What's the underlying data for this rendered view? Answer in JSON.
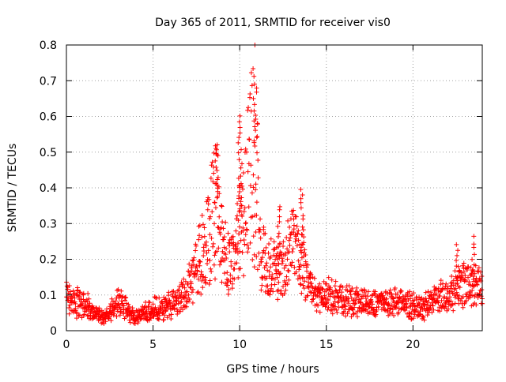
{
  "chart_data": {
    "type": "scatter",
    "title": "Day 365 of 2011, SRMTID for receiver vis0",
    "xlabel": "GPS time / hours",
    "ylabel": "SRMTID / TECUs",
    "xlim": [
      0,
      24
    ],
    "ylim": [
      0,
      0.8
    ],
    "xticks": [
      0,
      5,
      10,
      15,
      20
    ],
    "xtick_labels": [
      "0",
      "5",
      "10",
      "15",
      "20"
    ],
    "yticks": [
      0,
      0.1,
      0.2,
      0.3,
      0.4,
      0.5,
      0.6,
      0.7,
      0.8
    ],
    "ytick_labels": [
      "0",
      "0.1",
      "0.2",
      "0.3",
      "0.4",
      "0.5",
      "0.6",
      "0.7",
      "0.8"
    ],
    "grid": true,
    "marker": "+",
    "marker_color": "#ff0000",
    "series": [
      {
        "name": "SRMTID",
        "envelope": [
          [
            0.0,
            0.09
          ],
          [
            0.5,
            0.08
          ],
          [
            1.0,
            0.07
          ],
          [
            1.5,
            0.06
          ],
          [
            2.0,
            0.04
          ],
          [
            2.5,
            0.05
          ],
          [
            3.0,
            0.08
          ],
          [
            3.5,
            0.06
          ],
          [
            4.0,
            0.04
          ],
          [
            4.5,
            0.05
          ],
          [
            5.0,
            0.06
          ],
          [
            5.5,
            0.07
          ],
          [
            6.0,
            0.07
          ],
          [
            6.5,
            0.09
          ],
          [
            7.0,
            0.11
          ],
          [
            7.5,
            0.18
          ],
          [
            8.0,
            0.24
          ],
          [
            8.3,
            0.29
          ],
          [
            8.6,
            0.36
          ],
          [
            8.8,
            0.3
          ],
          [
            9.2,
            0.2
          ],
          [
            9.6,
            0.18
          ],
          [
            10.0,
            0.27
          ],
          [
            10.4,
            0.38
          ],
          [
            10.7,
            0.5
          ],
          [
            10.9,
            0.5
          ],
          [
            11.2,
            0.25
          ],
          [
            11.6,
            0.18
          ],
          [
            12.0,
            0.17
          ],
          [
            12.4,
            0.17
          ],
          [
            12.8,
            0.21
          ],
          [
            13.2,
            0.23
          ],
          [
            13.6,
            0.19
          ],
          [
            14.0,
            0.12
          ],
          [
            14.5,
            0.09
          ],
          [
            15.0,
            0.1
          ],
          [
            16.0,
            0.09
          ],
          [
            17.0,
            0.08
          ],
          [
            18.0,
            0.08
          ],
          [
            19.0,
            0.08
          ],
          [
            20.0,
            0.07
          ],
          [
            20.5,
            0.06
          ],
          [
            21.0,
            0.08
          ],
          [
            21.5,
            0.09
          ],
          [
            22.0,
            0.1
          ],
          [
            22.5,
            0.12
          ],
          [
            23.0,
            0.13
          ],
          [
            24.0,
            0.12
          ]
        ],
        "peaks": [
          {
            "x": 8.65,
            "y": 0.52
          },
          {
            "x": 10.02,
            "y": 0.6
          },
          {
            "x": 10.9,
            "y": 0.71
          },
          {
            "x": 12.25,
            "y": 0.35
          },
          {
            "x": 13.6,
            "y": 0.4
          },
          {
            "x": 22.6,
            "y": 0.24
          },
          {
            "x": 23.5,
            "y": 0.26
          }
        ]
      }
    ]
  }
}
